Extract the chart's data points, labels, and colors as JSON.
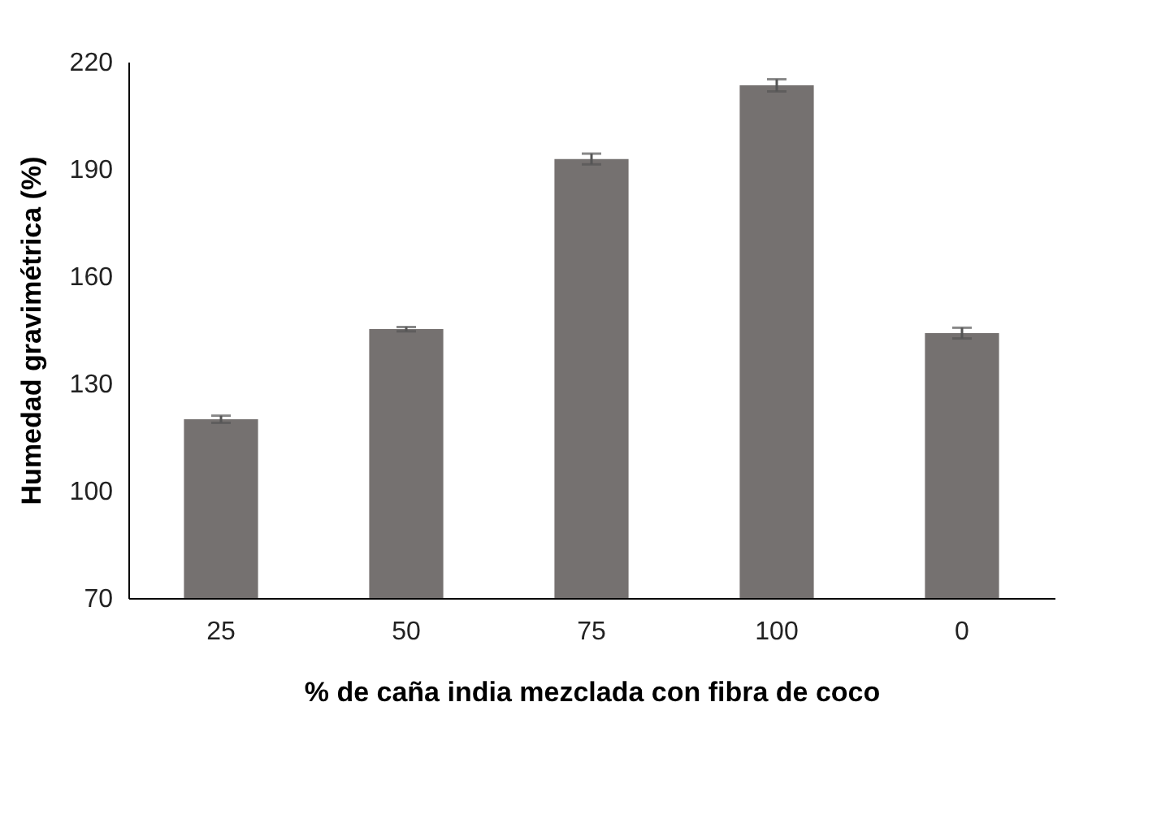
{
  "chart_data": {
    "type": "bar",
    "xlabel": "% de caña india mezclada con fibra de coco",
    "ylabel": "Humedad gravimétrica (%)",
    "categories": [
      "25",
      "50",
      "75",
      "100",
      "0"
    ],
    "values": [
      120,
      145.2,
      192.8,
      213.4,
      144.1
    ],
    "errors": [
      1,
      0.6,
      1.5,
      1.7,
      1.5
    ],
    "color": "#757170",
    "ylim": [
      70,
      220
    ],
    "yticks": [
      70,
      100,
      130,
      160,
      190,
      220
    ],
    "grid": false
  }
}
